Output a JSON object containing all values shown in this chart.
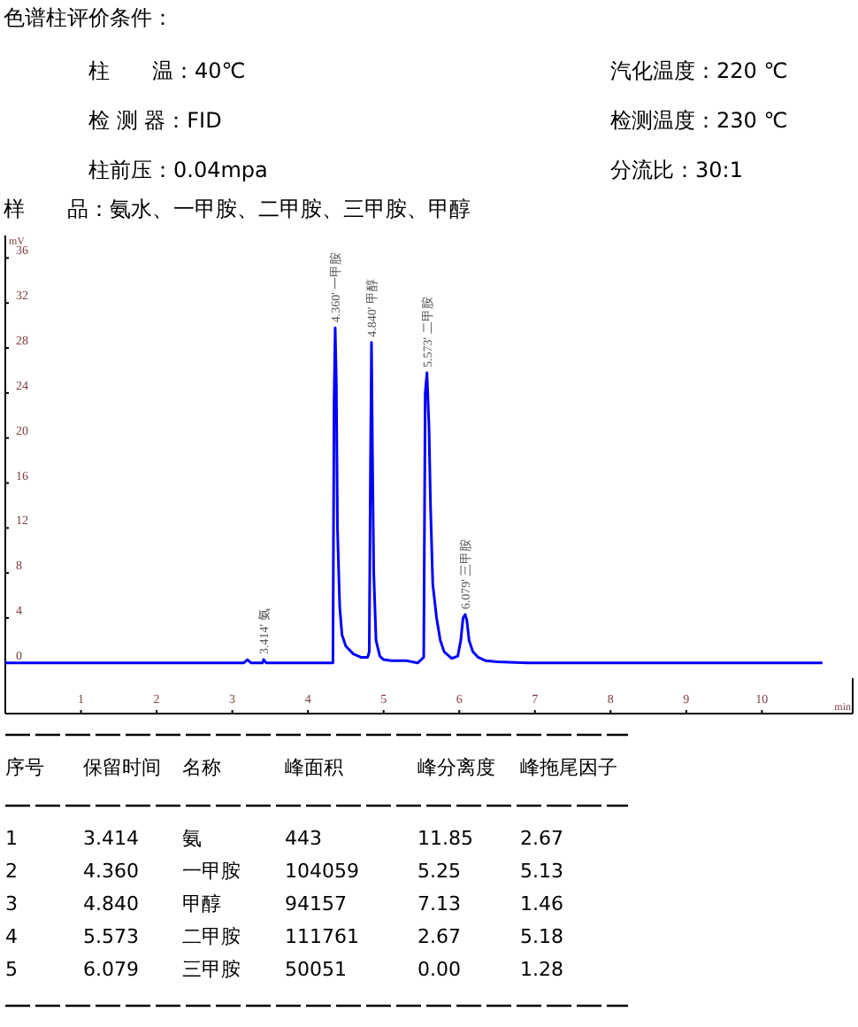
{
  "chart_data": {
    "type": "line",
    "title": "色谱柱评价条件：",
    "xlabel": "min",
    "ylabel": "mV",
    "x": [
      0,
      3.15,
      3.2,
      3.25,
      3.4,
      3.414,
      3.45,
      4.33,
      4.345,
      4.36,
      4.375,
      4.39,
      4.42,
      4.45,
      4.5,
      4.6,
      4.7,
      4.79,
      4.81,
      4.825,
      4.84,
      4.855,
      4.87,
      4.9,
      4.95,
      5.0,
      5.1,
      5.3,
      5.45,
      5.53,
      5.55,
      5.573,
      5.6,
      5.62,
      5.65,
      5.7,
      5.75,
      5.8,
      5.9,
      5.98,
      6.02,
      6.05,
      6.079,
      6.1,
      6.13,
      6.18,
      6.25,
      6.35,
      6.5,
      6.9,
      10.8
    ],
    "series": [
      {
        "color": "#0000ff",
        "values": [
          0,
          0,
          0.3,
          0,
          0,
          0.3,
          0,
          0,
          23,
          29.8,
          25,
          12,
          5,
          2.5,
          1.5,
          0.8,
          0.5,
          0.5,
          1,
          16,
          28.5,
          17,
          8,
          2,
          0.6,
          0.3,
          0.2,
          0.2,
          0,
          0.5,
          24,
          25.8,
          21,
          14,
          7,
          4,
          2,
          1,
          0.4,
          0.6,
          2,
          4,
          4.3,
          3.8,
          2,
          1,
          0.5,
          0.2,
          0.1,
          0,
          0
        ]
      }
    ],
    "xlim": [
      0,
      11.2
    ],
    "ylim": [
      -4.5,
      38
    ],
    "xticks": [
      1,
      2,
      3,
      4,
      5,
      6,
      7,
      8,
      9,
      10
    ],
    "yticks": [
      0,
      4,
      8,
      12,
      16,
      20,
      24,
      28,
      32,
      36
    ],
    "grid": false,
    "marker": "none",
    "line_style": "solid",
    "annotations": [
      "柱　　温：40℃",
      "汽化温度：220 ℃",
      "检 测 器：FID",
      "检测温度：230 ℃",
      "柱前压：0.04mpa",
      "分流比：30:1",
      "样　　品：氨水、一甲胺、二甲胺、三甲胺、甲醇",
      "序号\t保留时间\t名称\t峰面积\t峰分离度\t峰拖尾因子",
      "1\t3.414\t氨\t443\t11.85\t2.67",
      "2\t4.360\t一甲胺\t104059\t5.25\t5.13",
      "3\t4.840\t甲醇\t94157\t7.13\t1.46",
      "4\t5.573\t二甲胺\t111761\t2.67\t5.18",
      "5\t6.079\t三甲胺\t50051\t0.00\t1.28",
      {
        "text": "3.414' 氨",
        "x": 3.414,
        "y": 0.3
      },
      {
        "text": "4.360' 一甲胺",
        "x": 4.36,
        "y": 29.8
      },
      {
        "text": "4.840' 甲醇",
        "x": 4.84,
        "y": 28.5
      },
      {
        "text": "5.573' 二甲胺",
        "x": 5.573,
        "y": 25.8
      },
      {
        "text": "6.079' 三甲胺",
        "x": 6.079,
        "y": 4.3
      }
    ]
  }
}
